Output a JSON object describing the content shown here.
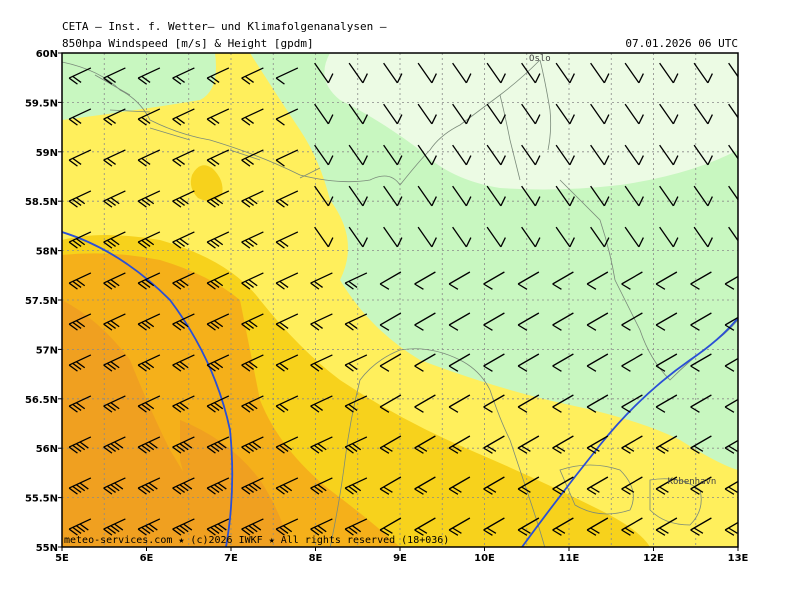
{
  "header": {
    "line1": "CETA – Inst. f. Wetter– und Klimafolgenanalysen –",
    "line2": "850hpa Windspeed [m/s] & Height [gpdm]",
    "timestamp": "07.01.2026 06 UTC"
  },
  "axes": {
    "x_ticks": [
      "5E",
      "6E",
      "7E",
      "8E",
      "9E",
      "10E",
      "11E",
      "12E",
      "13E"
    ],
    "y_ticks": [
      "60N",
      "59.5N",
      "59N",
      "58.5N",
      "58N",
      "57.5N",
      "57N",
      "56.5N",
      "56N",
      "55.5N",
      "55N"
    ],
    "lon_range": [
      5,
      13
    ],
    "lat_range": [
      55,
      60
    ],
    "grid": true
  },
  "places": [
    {
      "name": "Oslo",
      "lon": 10.75,
      "lat": 59.95
    },
    {
      "name": "Kobenhavn",
      "lon": 12.55,
      "lat": 55.67
    }
  ],
  "footer": {
    "copyright": "meteo-services.com ★ (c)2026 IWKF ★ All rights reserved (18+036)"
  },
  "colors": {
    "calm_light": "#ecfbe4",
    "light_green": "#c8f7c0",
    "light_yellow": "#ffef5c",
    "yellow": "#f7d21c",
    "orange": "#f5b01a",
    "dark_orange": "#f0a020",
    "contour_line": "#2a4fd6",
    "coast": "#7a8a7a",
    "grid": "#8a8a8a"
  }
}
